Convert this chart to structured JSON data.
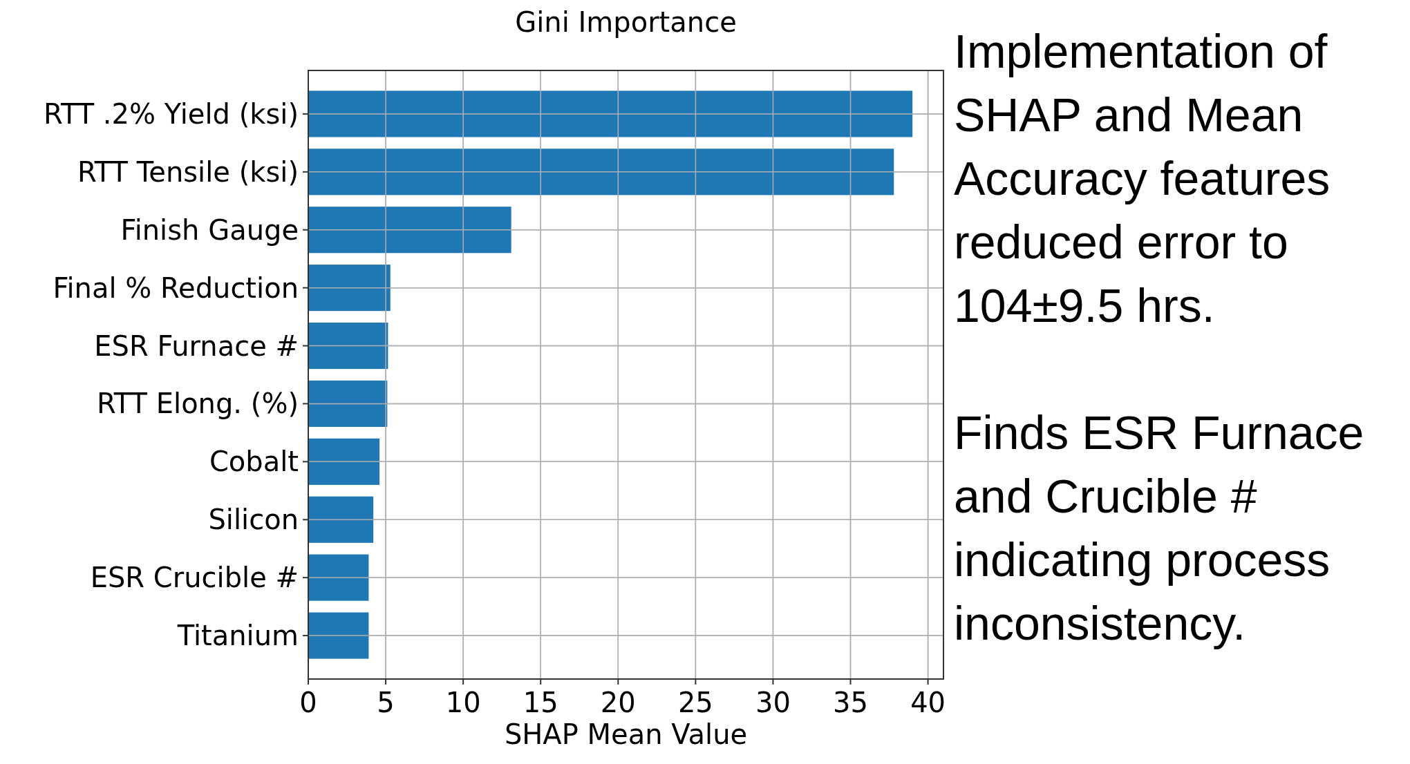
{
  "chart_data": {
    "type": "bar",
    "orientation": "horizontal",
    "title": "Gini Importance",
    "xlabel": "SHAP Mean Value",
    "categories": [
      "RTT .2% Yield (ksi)",
      "RTT Tensile (ksi)",
      "Finish Gauge",
      "Final % Reduction",
      "ESR Furnace #",
      "RTT Elong. (%)",
      "Cobalt",
      "Silicon",
      "ESR Crucible #",
      "Titanium"
    ],
    "values": [
      39.0,
      37.8,
      13.1,
      5.3,
      5.15,
      5.1,
      4.6,
      4.2,
      3.9,
      3.9
    ],
    "color": "#1f77b4",
    "xlim": [
      0,
      41
    ],
    "xticks": [
      0,
      5,
      10,
      15,
      20,
      25,
      30,
      35,
      40
    ],
    "grid": true,
    "annotations": [
      "Implementation of SHAP and Mean Accuracy features reduced error to 104±9.5 hrs.",
      "Finds ESR Furnace and Crucible # indicating process inconsistency."
    ]
  }
}
